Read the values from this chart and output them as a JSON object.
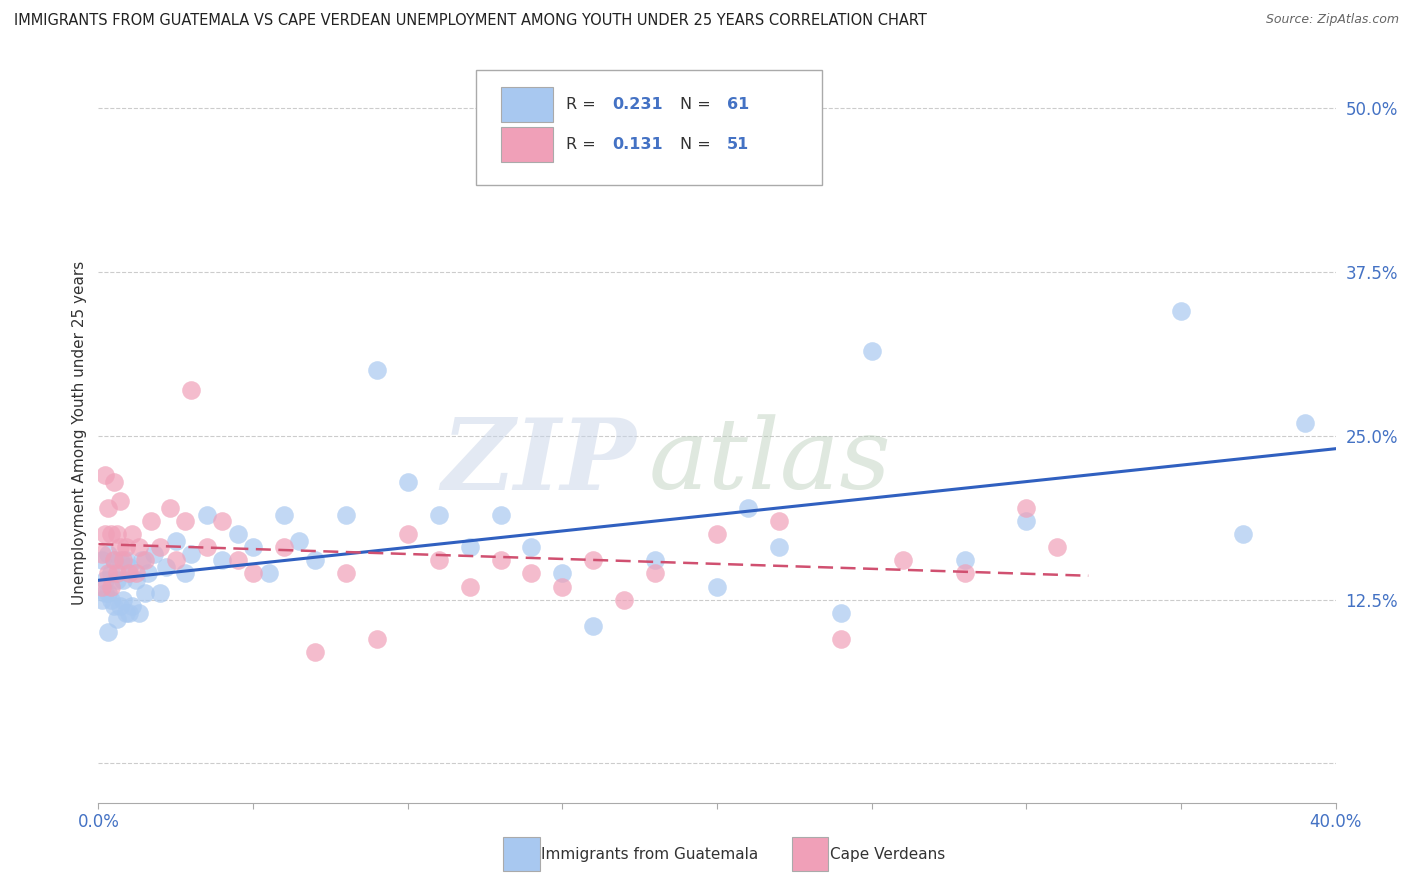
{
  "title": "IMMIGRANTS FROM GUATEMALA VS CAPE VERDEAN UNEMPLOYMENT AMONG YOUTH UNDER 25 YEARS CORRELATION CHART",
  "source": "Source: ZipAtlas.com",
  "ylabel": "Unemployment Among Youth under 25 years",
  "xmin": 0.0,
  "xmax": 0.4,
  "ymin": -0.03,
  "ymax": 0.535,
  "yticks": [
    0.0,
    0.125,
    0.25,
    0.375,
    0.5
  ],
  "ytick_labels": [
    "",
    "12.5%",
    "25.0%",
    "37.5%",
    "50.0%"
  ],
  "xticks": [
    0.0,
    0.05,
    0.1,
    0.15,
    0.2,
    0.25,
    0.3,
    0.35,
    0.4
  ],
  "xtick_labels": [
    "0.0%",
    "",
    "",
    "",
    "",
    "",
    "",
    "",
    "40.0%"
  ],
  "legend_label1": "Immigrants from Guatemala",
  "legend_label2": "Cape Verdeans",
  "R1": 0.231,
  "N1": 61,
  "R2": 0.131,
  "N2": 51,
  "color_blue": "#A8C8F0",
  "color_pink": "#F0A0B8",
  "color_blue_line": "#3060C0",
  "color_pink_line": "#D05070",
  "blue_scatter_x": [
    0.001,
    0.001,
    0.002,
    0.002,
    0.003,
    0.003,
    0.003,
    0.004,
    0.004,
    0.005,
    0.005,
    0.006,
    0.006,
    0.007,
    0.007,
    0.008,
    0.008,
    0.009,
    0.009,
    0.01,
    0.01,
    0.011,
    0.012,
    0.013,
    0.014,
    0.015,
    0.016,
    0.018,
    0.02,
    0.022,
    0.025,
    0.028,
    0.03,
    0.035,
    0.04,
    0.045,
    0.05,
    0.055,
    0.06,
    0.065,
    0.07,
    0.08,
    0.09,
    0.1,
    0.11,
    0.12,
    0.13,
    0.14,
    0.15,
    0.16,
    0.18,
    0.2,
    0.21,
    0.22,
    0.24,
    0.25,
    0.28,
    0.3,
    0.35,
    0.37,
    0.39
  ],
  "blue_scatter_y": [
    0.155,
    0.125,
    0.14,
    0.13,
    0.16,
    0.13,
    0.1,
    0.145,
    0.125,
    0.155,
    0.12,
    0.14,
    0.11,
    0.155,
    0.12,
    0.14,
    0.125,
    0.155,
    0.115,
    0.15,
    0.115,
    0.12,
    0.14,
    0.115,
    0.155,
    0.13,
    0.145,
    0.16,
    0.13,
    0.15,
    0.17,
    0.145,
    0.16,
    0.19,
    0.155,
    0.175,
    0.165,
    0.145,
    0.19,
    0.17,
    0.155,
    0.19,
    0.3,
    0.215,
    0.19,
    0.165,
    0.19,
    0.165,
    0.145,
    0.105,
    0.155,
    0.135,
    0.195,
    0.165,
    0.115,
    0.315,
    0.155,
    0.185,
    0.345,
    0.175,
    0.26
  ],
  "pink_scatter_x": [
    0.001,
    0.001,
    0.002,
    0.002,
    0.003,
    0.003,
    0.004,
    0.004,
    0.005,
    0.005,
    0.006,
    0.006,
    0.007,
    0.007,
    0.008,
    0.009,
    0.01,
    0.011,
    0.012,
    0.013,
    0.015,
    0.017,
    0.02,
    0.023,
    0.025,
    0.028,
    0.03,
    0.035,
    0.04,
    0.045,
    0.05,
    0.06,
    0.07,
    0.08,
    0.09,
    0.1,
    0.11,
    0.12,
    0.13,
    0.14,
    0.15,
    0.16,
    0.17,
    0.18,
    0.2,
    0.22,
    0.24,
    0.26,
    0.28,
    0.3,
    0.31
  ],
  "pink_scatter_y": [
    0.16,
    0.135,
    0.22,
    0.175,
    0.195,
    0.145,
    0.175,
    0.135,
    0.155,
    0.215,
    0.175,
    0.145,
    0.2,
    0.165,
    0.155,
    0.165,
    0.145,
    0.175,
    0.145,
    0.165,
    0.155,
    0.185,
    0.165,
    0.195,
    0.155,
    0.185,
    0.285,
    0.165,
    0.185,
    0.155,
    0.145,
    0.165,
    0.085,
    0.145,
    0.095,
    0.175,
    0.155,
    0.135,
    0.155,
    0.145,
    0.135,
    0.155,
    0.125,
    0.145,
    0.175,
    0.185,
    0.095,
    0.155,
    0.145,
    0.195,
    0.165
  ]
}
